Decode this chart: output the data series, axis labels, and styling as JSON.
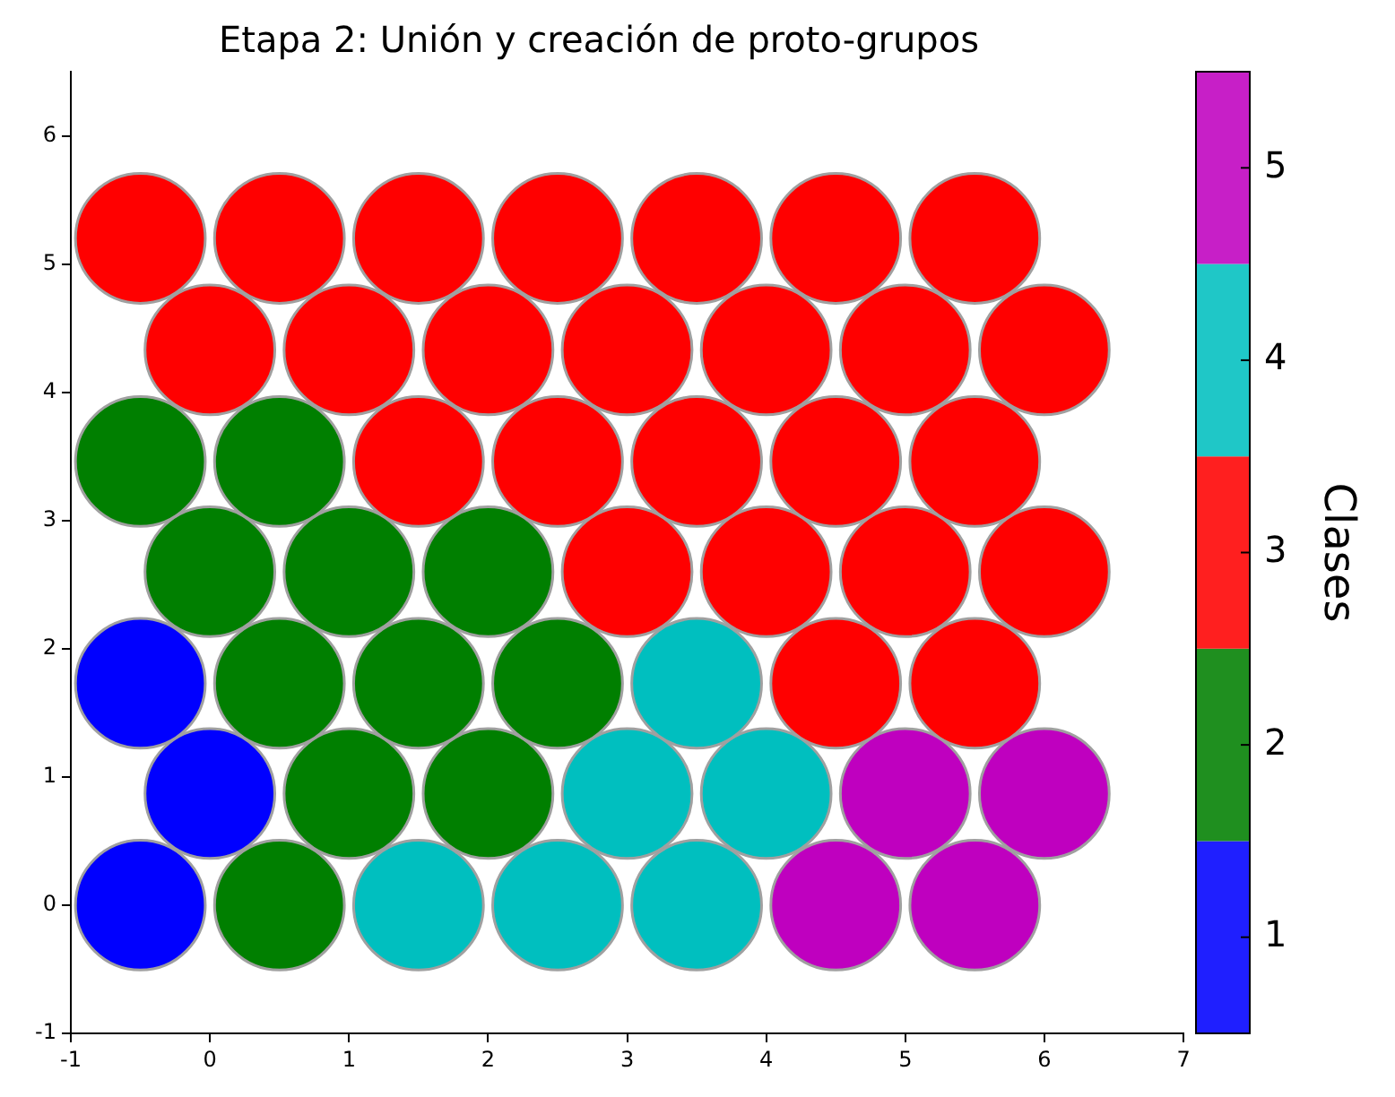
{
  "chart_data": {
    "type": "scatter",
    "title": "Etapa 2: Unión y creación de proto-grupos",
    "clabel": "Clases",
    "marker": "circle",
    "series": [
      {
        "color": "#0000ff",
        "x": [
          -0.5,
          0,
          -0.5
        ],
        "values": [
          0,
          0.87,
          1.73
        ]
      },
      {
        "color": "#007f00",
        "x": [
          0.5,
          1,
          2,
          0.5,
          1.5,
          2.5,
          0,
          1,
          2,
          -0.5,
          0.5
        ],
        "values": [
          0,
          0.87,
          0.87,
          1.73,
          1.73,
          1.73,
          2.6,
          2.6,
          2.6,
          3.46,
          3.46
        ]
      },
      {
        "color": "#ff0000",
        "x": [
          4.5,
          5.5,
          3,
          4,
          5,
          6,
          1.5,
          2.5,
          3.5,
          4.5,
          5.5,
          0,
          1,
          2,
          3,
          4,
          5,
          6,
          -0.5,
          0.5,
          1.5,
          2.5,
          3.5,
          4.5,
          5.5
        ],
        "values": [
          1.73,
          1.73,
          2.6,
          2.6,
          2.6,
          2.6,
          3.46,
          3.46,
          3.46,
          3.46,
          3.46,
          4.33,
          4.33,
          4.33,
          4.33,
          4.33,
          4.33,
          4.33,
          5.2,
          5.2,
          5.2,
          5.2,
          5.2,
          5.2,
          5.2
        ]
      },
      {
        "color": "#00bfbf",
        "x": [
          1.5,
          2.5,
          3.5,
          3,
          4,
          3.5
        ],
        "values": [
          0,
          0,
          0,
          0.87,
          0.87,
          1.73
        ]
      },
      {
        "color": "#bf00bf",
        "x": [
          4.5,
          5.5,
          5,
          6
        ],
        "values": [
          0,
          0,
          0.87,
          0.87
        ]
      }
    ],
    "clim": [
      0.5,
      5.5
    ],
    "cticks": [
      1,
      2,
      3,
      4,
      5
    ],
    "xlim": [
      -1,
      7
    ],
    "xticks": [
      -1,
      0,
      1,
      2,
      3,
      4,
      5,
      6,
      7
    ],
    "ylim": [
      -1,
      6.5
    ],
    "yticks": [
      -1,
      0,
      1,
      2,
      3,
      4,
      5,
      6
    ],
    "grid": false,
    "legend": false
  }
}
